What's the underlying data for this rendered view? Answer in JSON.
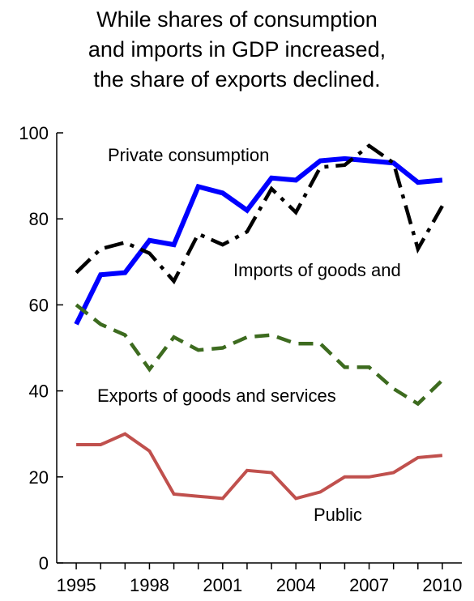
{
  "chart_data": {
    "type": "line",
    "title_lines": [
      "While shares of consumption",
      "and imports in GDP increased,",
      "the share of exports declined."
    ],
    "xlabel": "",
    "ylabel": "",
    "xlim": [
      1995,
      2010
    ],
    "ylim": [
      0,
      100
    ],
    "x_ticks": [
      1995,
      1998,
      2001,
      2004,
      2007,
      2010
    ],
    "y_ticks": [
      0,
      20,
      40,
      60,
      80,
      100
    ],
    "grid": false,
    "x": [
      1995,
      1996,
      1997,
      1998,
      1999,
      2000,
      2001,
      2002,
      2003,
      2004,
      2005,
      2006,
      2007,
      2008,
      2009,
      2010
    ],
    "series": [
      {
        "name": "Private consumption",
        "color": "#0000ff",
        "style": "solid",
        "values": [
          55.5,
          67,
          67.5,
          75,
          74,
          87.5,
          86,
          82,
          89.5,
          89,
          93.5,
          94,
          93.5,
          93,
          88.5,
          89
        ]
      },
      {
        "name": "Imports of goods and",
        "color": "#000000",
        "style": "dashdot",
        "values": [
          67.5,
          73,
          74.5,
          72,
          65.5,
          76.5,
          74,
          77,
          87,
          81.5,
          92,
          92.5,
          97,
          93,
          73,
          83
        ]
      },
      {
        "name": "Exports of goods and services",
        "color": "#3d6b1f",
        "style": "dashed",
        "values": [
          60,
          55.5,
          53,
          45,
          52.5,
          49.5,
          50,
          52.5,
          53,
          51,
          51,
          45.5,
          45.5,
          40.5,
          37,
          42.5
        ]
      },
      {
        "name": "Public",
        "color": "#c0504d",
        "style": "solid",
        "values": [
          27.5,
          27.5,
          30,
          26,
          16,
          15.5,
          15,
          21.5,
          21,
          15,
          16.5,
          20,
          20,
          21,
          24.5,
          25
        ]
      }
    ]
  }
}
